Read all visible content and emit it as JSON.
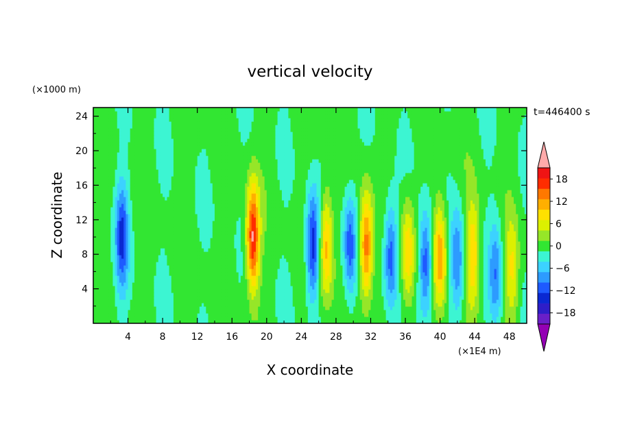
{
  "chart_data": {
    "type": "heatmap",
    "title": "vertical velocity",
    "xlabel": "X coordinate",
    "ylabel": "Z coordinate",
    "x_unit": "(×1E4 m)",
    "y_unit": "(×1000 m)",
    "time_label": "t=446400 s",
    "xlim": [
      0,
      50
    ],
    "ylim": [
      0,
      25
    ],
    "x_ticks": [
      4,
      8,
      12,
      16,
      20,
      24,
      28,
      32,
      36,
      40,
      44,
      48
    ],
    "y_ticks": [
      4,
      8,
      12,
      16,
      20,
      24
    ],
    "colorbar": {
      "levels": [
        -21,
        -18,
        -15,
        -12,
        -9,
        -6,
        -3,
        0,
        3,
        6,
        9,
        12,
        15,
        18,
        21
      ],
      "tick_labels": [
        18,
        12,
        6,
        0,
        -6,
        -12,
        -18
      ],
      "colors": [
        "#9400b4",
        "#6a1fc8",
        "#2e1ec8",
        "#0a28d2",
        "#1e5aff",
        "#2d9bff",
        "#3cd2ff",
        "#3cf5d2",
        "#32e632",
        "#96e628",
        "#dcf000",
        "#ffe100",
        "#ffaf00",
        "#ff7800",
        "#ff2d00",
        "#f01414",
        "#ffaaaa"
      ],
      "extend": "both"
    },
    "features": [
      {
        "x": 3.3,
        "z": 10,
        "value": -13
      },
      {
        "x": 18.4,
        "z": 10,
        "value": 21
      },
      {
        "x": 25.3,
        "z": 9,
        "value": -15
      },
      {
        "x": 26.9,
        "z": 9,
        "value": 13
      },
      {
        "x": 29.6,
        "z": 9,
        "value": -12
      },
      {
        "x": 31.5,
        "z": 9,
        "value": 17
      },
      {
        "x": 34.3,
        "z": 8,
        "value": -12
      },
      {
        "x": 36.3,
        "z": 8,
        "value": 11
      },
      {
        "x": 38.3,
        "z": 7,
        "value": -13
      },
      {
        "x": 40.0,
        "z": 8,
        "value": 14
      },
      {
        "x": 42.0,
        "z": 7,
        "value": -10
      },
      {
        "x": 43.8,
        "z": 8,
        "value": 11
      },
      {
        "x": 46.4,
        "z": 6,
        "value": -9
      },
      {
        "x": 48.3,
        "z": 6,
        "value": 8
      }
    ]
  }
}
